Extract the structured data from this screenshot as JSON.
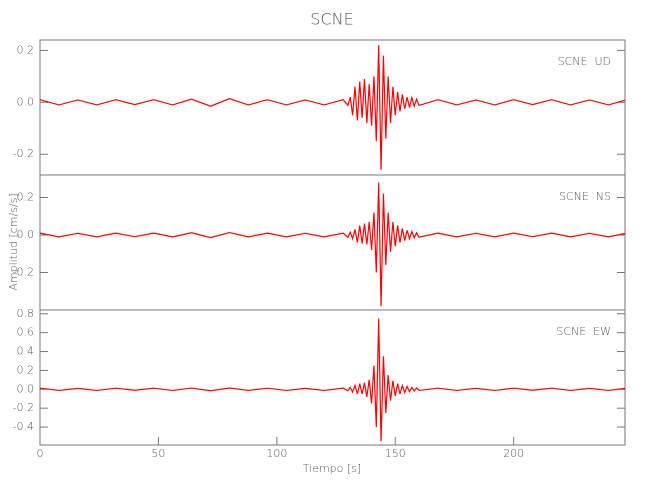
{
  "chart_data": [
    {
      "type": "line",
      "title": "SCNE",
      "label": "SCNE  UD",
      "x": [
        0,
        8,
        16,
        24,
        32,
        40,
        48,
        56,
        64,
        72,
        80,
        88,
        96,
        104,
        112,
        120,
        128,
        130,
        131,
        132,
        133,
        134,
        135,
        136,
        137,
        138,
        139,
        140,
        141,
        142,
        143,
        144,
        145,
        146,
        147,
        148,
        149,
        150,
        151,
        152,
        153,
        154,
        155,
        156,
        157,
        158,
        159,
        160,
        168,
        176,
        184,
        192,
        200,
        208,
        216,
        224,
        232,
        240,
        247
      ],
      "series": [
        {
          "color": "#ff0000",
          "values": [
            0.01,
            -0.01,
            0.009,
            -0.01,
            0.01,
            -0.009,
            0.01,
            -0.01,
            0.012,
            -0.015,
            0.014,
            -0.01,
            0.01,
            -0.01,
            0.009,
            -0.01,
            0.01,
            -0.012,
            0.02,
            -0.05,
            0.06,
            -0.07,
            0.08,
            -0.06,
            0.09,
            -0.08,
            0.07,
            -0.09,
            0.1,
            -0.15,
            0.22,
            -0.26,
            0.18,
            -0.14,
            0.1,
            -0.08,
            0.06,
            -0.05,
            0.04,
            -0.035,
            0.03,
            -0.025,
            0.02,
            -0.02,
            0.018,
            -0.015,
            0.012,
            -0.012,
            0.01,
            -0.01,
            0.009,
            -0.01,
            0.01,
            -0.009,
            0.01,
            -0.01,
            0.009,
            -0.01,
            0.008
          ]
        }
      ],
      "xlim": [
        0,
        247
      ],
      "ylim": [
        -0.28,
        0.24
      ],
      "yticks": [
        0.2,
        {
          "value": 0,
          "label": "0.0"
        },
        -0.2
      ]
    },
    {
      "type": "line",
      "label": "SCNE  NS",
      "ylabel": "Amplitud [cm/s/s]",
      "x": [
        0,
        8,
        16,
        24,
        32,
        40,
        48,
        56,
        64,
        72,
        80,
        88,
        96,
        104,
        112,
        120,
        128,
        130,
        131,
        132,
        133,
        134,
        135,
        136,
        137,
        138,
        139,
        140,
        141,
        142,
        143,
        144,
        145,
        146,
        147,
        148,
        149,
        150,
        151,
        152,
        153,
        154,
        155,
        156,
        157,
        158,
        159,
        160,
        168,
        176,
        184,
        192,
        200,
        208,
        216,
        224,
        232,
        240,
        247
      ],
      "series": [
        {
          "color": "#ff0000",
          "values": [
            0.01,
            -0.01,
            0.009,
            -0.01,
            0.01,
            -0.009,
            0.01,
            -0.01,
            0.012,
            -0.014,
            0.013,
            -0.01,
            0.01,
            -0.01,
            0.009,
            -0.01,
            0.01,
            -0.012,
            0.015,
            -0.02,
            0.03,
            -0.04,
            0.05,
            -0.045,
            0.06,
            -0.05,
            0.07,
            -0.08,
            0.12,
            -0.2,
            0.28,
            -0.38,
            0.22,
            -0.16,
            0.12,
            -0.09,
            0.07,
            -0.06,
            0.05,
            -0.04,
            0.035,
            -0.03,
            0.025,
            -0.02,
            0.018,
            -0.015,
            0.012,
            -0.012,
            0.01,
            -0.01,
            0.009,
            -0.01,
            0.01,
            -0.009,
            0.01,
            -0.01,
            0.009,
            -0.01,
            0.008
          ]
        }
      ],
      "xlim": [
        0,
        247
      ],
      "ylim": [
        -0.4,
        0.32
      ],
      "yticks": [
        0.2,
        {
          "value": 0,
          "label": "0.0"
        },
        -0.2
      ]
    },
    {
      "type": "line",
      "label": "SCNE  EW",
      "xlabel": "Tiempo [s]",
      "x": [
        0,
        8,
        16,
        24,
        32,
        40,
        48,
        56,
        64,
        72,
        80,
        88,
        96,
        104,
        112,
        120,
        128,
        130,
        131,
        132,
        133,
        134,
        135,
        136,
        137,
        138,
        139,
        140,
        141,
        142,
        143,
        144,
        145,
        146,
        147,
        148,
        149,
        150,
        151,
        152,
        153,
        154,
        155,
        156,
        157,
        158,
        159,
        160,
        168,
        176,
        184,
        192,
        200,
        208,
        216,
        224,
        232,
        240,
        247
      ],
      "series": [
        {
          "color": "#ff0000",
          "values": [
            0.012,
            -0.012,
            0.01,
            -0.012,
            0.012,
            -0.01,
            0.012,
            -0.012,
            0.013,
            -0.015,
            0.014,
            -0.012,
            0.012,
            -0.012,
            0.01,
            -0.012,
            0.012,
            -0.015,
            0.02,
            -0.03,
            0.04,
            -0.05,
            0.06,
            -0.05,
            0.07,
            -0.08,
            0.1,
            -0.15,
            0.25,
            -0.4,
            0.75,
            -0.55,
            0.35,
            -0.25,
            0.15,
            -0.12,
            0.09,
            -0.07,
            0.06,
            -0.05,
            0.04,
            -0.035,
            0.03,
            -0.025,
            0.02,
            -0.018,
            0.015,
            -0.012,
            0.012,
            -0.012,
            0.01,
            -0.012,
            0.012,
            -0.01,
            0.012,
            -0.012,
            0.01,
            -0.012,
            0.01
          ]
        }
      ],
      "xlim": [
        0,
        247
      ],
      "ylim": [
        -0.59,
        0.84
      ],
      "yticks": [
        0.8,
        0.6,
        0.4,
        0.2,
        {
          "value": 0,
          "label": "0.0"
        },
        -0.2,
        -0.4
      ],
      "xticks": [
        0,
        50,
        100,
        150,
        200
      ]
    }
  ]
}
